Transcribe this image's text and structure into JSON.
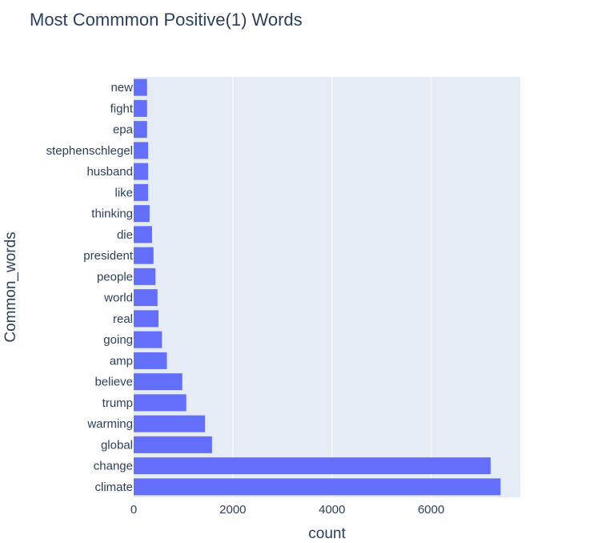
{
  "chart_data": {
    "type": "bar",
    "orientation": "horizontal",
    "title": "Most Commmon Positive(1) Words",
    "xlabel": "count",
    "ylabel": "Common_words",
    "xlim": [
      0,
      7800
    ],
    "xticks": [
      0,
      2000,
      4000,
      6000
    ],
    "grid": true,
    "bar_color": "#636efa",
    "plot_bg": "#e5ecf6",
    "categories": [
      "climate",
      "change",
      "global",
      "warming",
      "trump",
      "believe",
      "amp",
      "going",
      "real",
      "world",
      "people",
      "president",
      "die",
      "thinking",
      "like",
      "husband",
      "stephenschlegel",
      "epa",
      "fight",
      "new"
    ],
    "values": [
      7400,
      7200,
      1580,
      1440,
      1060,
      980,
      670,
      570,
      500,
      480,
      440,
      400,
      370,
      320,
      290,
      290,
      290,
      270,
      270,
      270
    ]
  }
}
